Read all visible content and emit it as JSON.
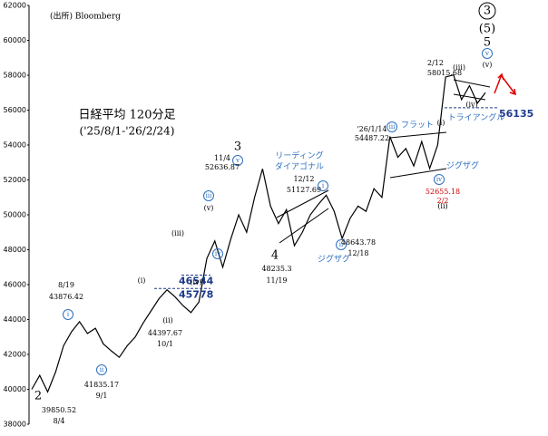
{
  "chart_data": {
    "type": "line",
    "source": "(出所) Bloomberg",
    "title": "日経平均 120分足",
    "subtitle": "('25/8/1-'26/2/24)",
    "color": "#000000",
    "categories": [
      null,
      null,
      null,
      null,
      null,
      null,
      null,
      null,
      null,
      null,
      null,
      null,
      null,
      null,
      null,
      null,
      null,
      null,
      null,
      null,
      null,
      null,
      null,
      null,
      null,
      null,
      null,
      null,
      null,
      null,
      null,
      null,
      null,
      null,
      null,
      null,
      null,
      null,
      null,
      null,
      null,
      null,
      null,
      null,
      null,
      null,
      null,
      null,
      null,
      null,
      null,
      null,
      null,
      null,
      null,
      null,
      null,
      null
    ],
    "values": [
      40000,
      40800,
      39850,
      41000,
      42500,
      43300,
      43876,
      43200,
      43500,
      42600,
      42200,
      41835,
      42500,
      43000,
      43800,
      44500,
      45200,
      45700,
      45300,
      44800,
      44397,
      45000,
      47500,
      48500,
      47000,
      48600,
      50000,
      49000,
      51000,
      52636,
      50500,
      49500,
      50300,
      48235,
      49000,
      50000,
      50600,
      51127,
      50200,
      48643,
      49800,
      50500,
      50200,
      51500,
      51000,
      54487,
      53300,
      53800,
      52800,
      54200,
      52655,
      54000,
      57900,
      58015,
      56600,
      57400,
      56400,
      57000
    ],
    "ylim": [
      38000,
      62000
    ],
    "yticks": [
      38000,
      40000,
      42000,
      44000,
      46000,
      48000,
      50000,
      52000,
      54000,
      56000,
      58000,
      60000,
      62000
    ],
    "levels": [
      46544,
      45778,
      56135
    ],
    "annotations": [
      "2",
      "39850.52",
      "8/4",
      "8/19",
      "43876.42",
      "i",
      "ii",
      "41835.17",
      "9/1",
      "(i)",
      "(ii)",
      "44397.67",
      "10/1",
      "(iii)",
      "iii",
      "(v)",
      "iv",
      "(iv)",
      "3",
      "11/4",
      "v",
      "52636.87",
      "4",
      "48235.3",
      "11/19",
      "リーディング",
      "ダイアゴナル",
      "12/12",
      "51127.69",
      "i",
      "ii",
      "48643.78",
      "12/18",
      "ジグザグ",
      "'26/1/14",
      "54487.22",
      "iii",
      "フラット",
      "(i)",
      "(ii)",
      "iv",
      "52655.18",
      "2/2",
      "ジグザグ",
      "トライアングル",
      "(iii)",
      "(iv)",
      "2/12",
      "58015.68",
      "3",
      "(5)",
      "5",
      "v",
      "(v)"
    ]
  }
}
